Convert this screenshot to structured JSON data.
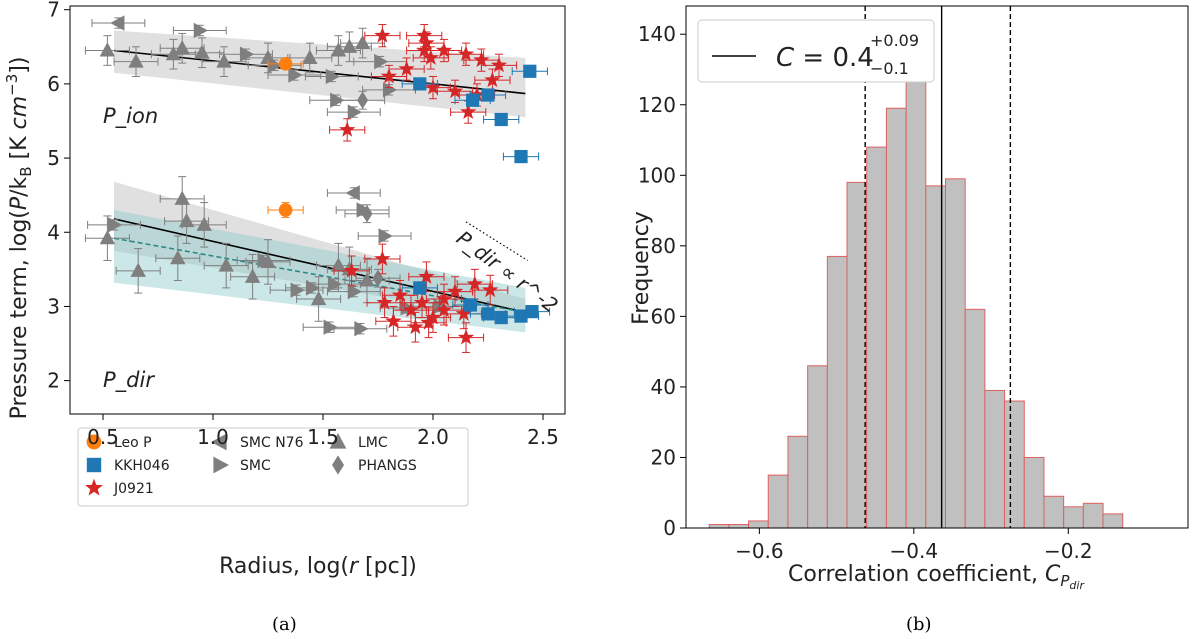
{
  "chart_data": [
    {
      "type": "scatter",
      "panel": "(a)",
      "xlabel": "Radius, log(r [pc])",
      "ylabel": "Pressure term, log(P/k_B [K cm^-3])",
      "xlim": [
        0.35,
        2.6
      ],
      "ylim": [
        1.55,
        7.05
      ],
      "xticks": [
        0.5,
        1.0,
        1.5,
        2.0,
        2.5
      ],
      "yticks": [
        2,
        3,
        4,
        5,
        6,
        7
      ],
      "xtick_labels": [
        "0.5",
        "1.0",
        "1.5",
        "2.0",
        "2.5"
      ],
      "ytick_labels": [
        "2",
        "3",
        "4",
        "5",
        "6",
        "7"
      ],
      "annotations": [
        "P_ion",
        "P_dir",
        "P_dir ∝ r^-2"
      ],
      "legend": [
        {
          "name": "Leo P",
          "marker": "circle",
          "color": "#ff7f0e"
        },
        {
          "name": "KKH046",
          "marker": "square",
          "color": "#1f77b4"
        },
        {
          "name": "J0921",
          "marker": "star",
          "color": "#d62728"
        },
        {
          "name": "SMC N76",
          "marker": "triangle-left",
          "color": "#7f7f7f"
        },
        {
          "name": "SMC",
          "marker": "triangle-right",
          "color": "#7f7f7f"
        },
        {
          "name": "LMC",
          "marker": "triangle-up",
          "color": "#7f7f7f"
        },
        {
          "name": "PHANGS",
          "marker": "diamond",
          "color": "#7f7f7f"
        }
      ],
      "fits": [
        {
          "name": "P_ion fit",
          "x": [
            0.55,
            2.42
          ],
          "y": [
            6.45,
            5.87
          ],
          "band_lower": [
            6.15,
            5.55
          ],
          "band_upper": [
            6.72,
            6.35
          ],
          "color": "#000000",
          "style": "solid",
          "band_color": "#bbbbbb"
        },
        {
          "name": "P_dir fit",
          "x": [
            0.55,
            2.42
          ],
          "y": [
            4.18,
            2.92
          ],
          "band_lower": [
            3.75,
            2.8
          ],
          "band_upper": [
            4.68,
            3.1
          ],
          "color": "#000000",
          "style": "solid",
          "band_color": "#bbbbbb"
        },
        {
          "name": "P_dir fit (alt)",
          "x": [
            0.55,
            2.42
          ],
          "y": [
            3.92,
            2.92
          ],
          "band_lower": [
            3.32,
            2.65
          ],
          "band_upper": [
            4.3,
            3.25
          ],
          "color": "#2a8a8a",
          "style": "dashed",
          "band_color": "#8ec9c9"
        }
      ],
      "reference_line": {
        "label": "P_dir ∝ r^-2",
        "x": [
          2.15,
          2.43
        ],
        "y": [
          4.14,
          3.62
        ]
      },
      "series": [
        {
          "name": "Leo P",
          "marker": "circle",
          "color": "#ff7f0e",
          "points": [
            [
              1.33,
              6.27,
              0.08,
              0.07
            ],
            [
              1.33,
              4.3,
              0.08,
              0.1
            ]
          ]
        },
        {
          "name": "KKH046",
          "marker": "square",
          "color": "#1f77b4",
          "points": [
            [
              2.44,
              6.17,
              0.08,
              0.07
            ],
            [
              1.94,
              6.0,
              0.08,
              0.07
            ],
            [
              2.18,
              5.78,
              0.08,
              0.07
            ],
            [
              2.25,
              5.85,
              0.08,
              0.07
            ],
            [
              2.31,
              5.52,
              0.08,
              0.07
            ],
            [
              2.4,
              5.02,
              0.08,
              0.07
            ],
            [
              1.94,
              3.25,
              0.08,
              0.07
            ],
            [
              2.17,
              3.02,
              0.08,
              0.07
            ],
            [
              2.25,
              2.9,
              0.08,
              0.07
            ],
            [
              2.31,
              2.85,
              0.08,
              0.07
            ],
            [
              2.4,
              2.87,
              0.08,
              0.07
            ],
            [
              2.45,
              2.93,
              0.08,
              0.07
            ]
          ]
        },
        {
          "name": "J0921",
          "marker": "star",
          "color": "#d62728",
          "points": [
            [
              1.77,
              6.65,
              0.08,
              0.15
            ],
            [
              1.96,
              6.65,
              0.08,
              0.15
            ],
            [
              1.97,
              6.55,
              0.08,
              0.15
            ],
            [
              1.96,
              6.45,
              0.08,
              0.15
            ],
            [
              1.99,
              6.35,
              0.08,
              0.15
            ],
            [
              2.05,
              6.45,
              0.08,
              0.15
            ],
            [
              2.15,
              6.4,
              0.08,
              0.15
            ],
            [
              2.22,
              6.32,
              0.08,
              0.15
            ],
            [
              2.3,
              6.25,
              0.08,
              0.15
            ],
            [
              1.88,
              6.2,
              0.08,
              0.15
            ],
            [
              1.8,
              6.1,
              0.08,
              0.15
            ],
            [
              2.0,
              5.95,
              0.08,
              0.15
            ],
            [
              2.1,
              5.9,
              0.08,
              0.15
            ],
            [
              2.2,
              5.85,
              0.08,
              0.15
            ],
            [
              2.27,
              6.05,
              0.08,
              0.15
            ],
            [
              2.16,
              5.62,
              0.08,
              0.15
            ],
            [
              1.61,
              5.38,
              0.08,
              0.15
            ],
            [
              1.77,
              3.64,
              0.08,
              0.2
            ],
            [
              1.63,
              3.48,
              0.08,
              0.2
            ],
            [
              2.19,
              3.3,
              0.08,
              0.2
            ],
            [
              2.26,
              3.22,
              0.08,
              0.2
            ],
            [
              1.78,
              3.05,
              0.08,
              0.2
            ],
            [
              1.85,
              3.15,
              0.08,
              0.2
            ],
            [
              1.9,
              2.95,
              0.08,
              0.2
            ],
            [
              1.95,
              3.05,
              0.08,
              0.2
            ],
            [
              2.0,
              2.85,
              0.08,
              0.2
            ],
            [
              2.05,
              3.1,
              0.08,
              0.2
            ],
            [
              2.1,
              3.2,
              0.08,
              0.2
            ],
            [
              2.14,
              2.9,
              0.08,
              0.2
            ],
            [
              1.98,
              2.78,
              0.08,
              0.2
            ],
            [
              1.92,
              2.72,
              0.08,
              0.2
            ],
            [
              2.05,
              2.95,
              0.08,
              0.2
            ],
            [
              1.82,
              2.8,
              0.08,
              0.2
            ],
            [
              2.15,
              2.58,
              0.08,
              0.2
            ],
            [
              1.97,
              3.4,
              0.08,
              0.2
            ]
          ]
        },
        {
          "name": "SMC N76",
          "marker": "triangle-left",
          "color": "#7f7f7f",
          "points": [
            [
              0.57,
              6.82,
              0.12,
              0.07
            ],
            [
              1.64,
              4.53,
              0.12,
              0.07
            ]
          ]
        },
        {
          "name": "SMC",
          "marker": "triangle-right",
          "color": "#7f7f7f",
          "points": [
            [
              0.94,
              6.72,
              0.12,
              0.07
            ],
            [
              1.15,
              6.4,
              0.12,
              0.07
            ],
            [
              1.28,
              6.25,
              0.12,
              0.07
            ],
            [
              1.37,
              6.12,
              0.12,
              0.07
            ],
            [
              1.54,
              6.1,
              0.12,
              0.07
            ],
            [
              1.76,
              6.3,
              0.12,
              0.07
            ],
            [
              1.8,
              5.92,
              0.12,
              0.07
            ],
            [
              1.56,
              5.78,
              0.12,
              0.07
            ],
            [
              1.64,
              5.62,
              0.12,
              0.07
            ],
            [
              1.68,
              4.3,
              0.12,
              0.07
            ],
            [
              1.78,
              3.95,
              0.12,
              0.07
            ],
            [
              1.23,
              3.62,
              0.12,
              0.07
            ],
            [
              1.38,
              3.22,
              0.12,
              0.07
            ],
            [
              1.45,
              3.25,
              0.12,
              0.07
            ],
            [
              1.55,
              3.3,
              0.12,
              0.07
            ],
            [
              1.64,
              3.2,
              0.12,
              0.07
            ],
            [
              1.53,
              2.72,
              0.12,
              0.07
            ],
            [
              1.67,
              2.7,
              0.12,
              0.07
            ],
            [
              1.88,
              2.98,
              0.12,
              0.07
            ],
            [
              2.03,
              3.0,
              0.12,
              0.07
            ],
            [
              0.55,
              4.1,
              0.12,
              0.07
            ]
          ]
        },
        {
          "name": "LMC",
          "marker": "triangle-up",
          "color": "#7f7f7f",
          "points": [
            [
              0.52,
              6.45,
              0.1,
              0.2
            ],
            [
              0.65,
              6.3,
              0.1,
              0.2
            ],
            [
              0.82,
              6.4,
              0.1,
              0.2
            ],
            [
              0.86,
              6.48,
              0.1,
              0.2
            ],
            [
              0.95,
              6.42,
              0.1,
              0.2
            ],
            [
              1.05,
              6.3,
              0.1,
              0.2
            ],
            [
              1.25,
              6.35,
              0.1,
              0.2
            ],
            [
              1.44,
              6.35,
              0.1,
              0.2
            ],
            [
              1.57,
              6.45,
              0.1,
              0.2
            ],
            [
              1.62,
              6.5,
              0.1,
              0.2
            ],
            [
              1.68,
              6.55,
              0.1,
              0.2
            ],
            [
              0.52,
              3.92,
              0.1,
              0.3
            ],
            [
              0.66,
              3.48,
              0.1,
              0.3
            ],
            [
              0.84,
              3.65,
              0.1,
              0.3
            ],
            [
              0.86,
              4.45,
              0.1,
              0.3
            ],
            [
              0.88,
              4.15,
              0.1,
              0.3
            ],
            [
              0.96,
              4.1,
              0.1,
              0.3
            ],
            [
              1.06,
              3.55,
              0.1,
              0.3
            ],
            [
              1.25,
              3.6,
              0.1,
              0.3
            ],
            [
              1.18,
              3.4,
              0.1,
              0.3
            ],
            [
              1.62,
              3.5,
              0.1,
              0.3
            ],
            [
              1.57,
              3.55,
              0.1,
              0.3
            ],
            [
              1.7,
              3.35,
              0.1,
              0.3
            ],
            [
              1.48,
              3.1,
              0.1,
              0.3
            ]
          ]
        },
        {
          "name": "PHANGS",
          "marker": "diamond",
          "color": "#7f7f7f",
          "points": [
            [
              1.68,
              5.78,
              0.1,
              0.12
            ],
            [
              1.7,
              4.25,
              0.1,
              0.12
            ],
            [
              1.75,
              3.38,
              0.1,
              0.12
            ]
          ]
        }
      ]
    },
    {
      "type": "histogram",
      "panel": "(b)",
      "xlabel": "Correlation coefficient, C_P_dir",
      "ylabel": "Frequency",
      "xlim": [
        -0.695,
        -0.045
      ],
      "ylim": [
        0,
        148
      ],
      "xticks": [
        -0.6,
        -0.4,
        -0.2
      ],
      "yticks": [
        0,
        20,
        40,
        60,
        80,
        100,
        120,
        140
      ],
      "xtick_labels": [
        "−0.6",
        "−0.4",
        "−0.2"
      ],
      "ytick_labels": [
        "0",
        "20",
        "40",
        "60",
        "80",
        "100",
        "120",
        "140"
      ],
      "bin_start": -0.665,
      "bin_width": 0.0255,
      "counts": [
        1,
        1,
        2,
        15,
        26,
        46,
        77,
        98,
        108,
        119,
        141,
        97,
        99,
        62,
        39,
        36,
        20,
        9,
        6,
        7,
        4
      ],
      "bar_fill": "#c0c0c0",
      "bar_edge": "#e06060",
      "vlines": [
        {
          "x": -0.364,
          "style": "solid",
          "label": "median"
        },
        {
          "x": -0.463,
          "style": "dashed",
          "label": "lower"
        },
        {
          "x": -0.275,
          "style": "dashed",
          "label": "upper"
        }
      ],
      "legend": {
        "label": "C = 0.4",
        "sup": "+0.09",
        "sub": "−0.1"
      }
    }
  ],
  "captions": {
    "a": "(a)",
    "b": "(b)"
  }
}
